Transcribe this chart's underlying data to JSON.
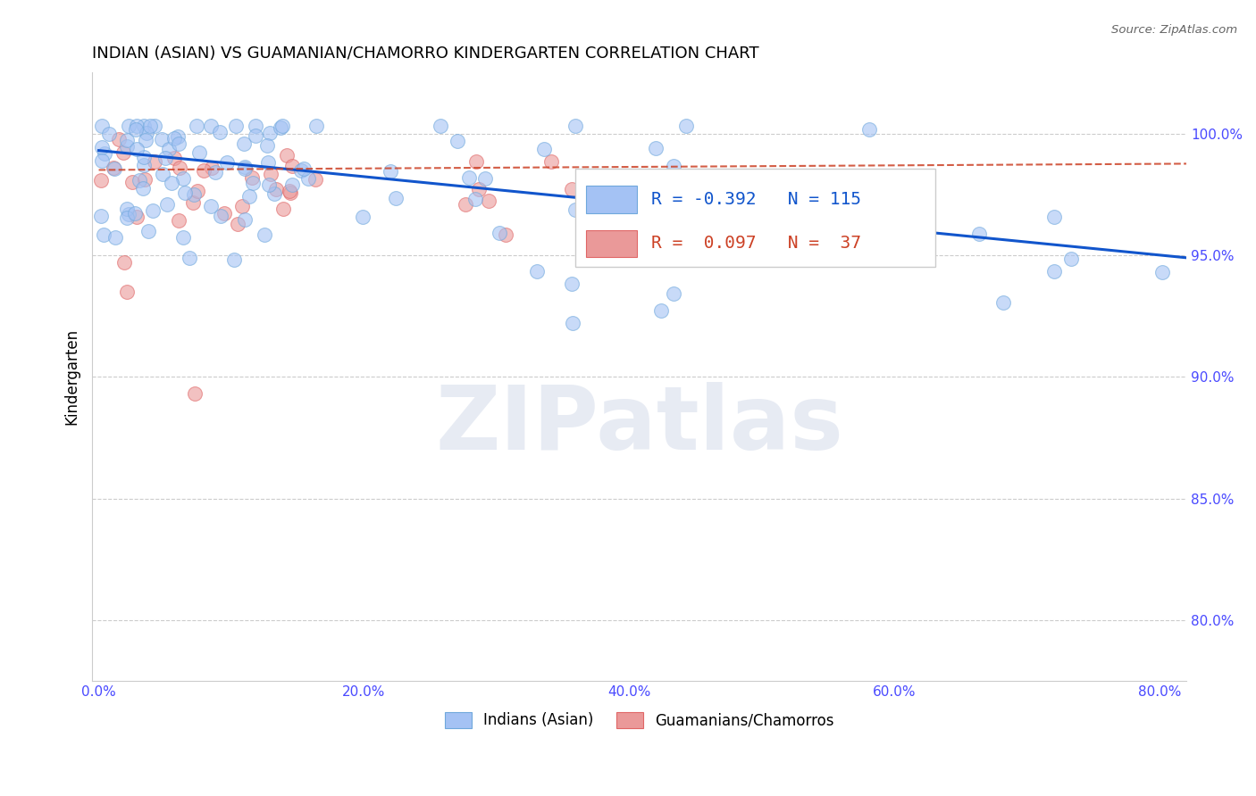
{
  "title": "INDIAN (ASIAN) VS GUAMANIAN/CHAMORRO KINDERGARTEN CORRELATION CHART",
  "source": "Source: ZipAtlas.com",
  "xlabel_ticks": [
    "0.0%",
    "20.0%",
    "40.0%",
    "60.0%",
    "80.0%"
  ],
  "xlabel_vals": [
    0.0,
    0.2,
    0.4,
    0.6,
    0.8
  ],
  "ylabel": "Kindergarten",
  "ylabel_ticks": [
    "80.0%",
    "85.0%",
    "90.0%",
    "95.0%",
    "100.0%"
  ],
  "ylabel_vals": [
    0.8,
    0.85,
    0.9,
    0.95,
    1.0
  ],
  "xlim": [
    -0.005,
    0.82
  ],
  "ylim": [
    0.775,
    1.025
  ],
  "R_blue": -0.392,
  "N_blue": 115,
  "R_pink": 0.097,
  "N_pink": 37,
  "blue_color": "#a4c2f4",
  "pink_color": "#ea9999",
  "blue_edge": "#6fa8dc",
  "pink_edge": "#e06666",
  "trend_blue": "#1155cc",
  "trend_pink": "#cc4125",
  "watermark_color": "#d0d8e8",
  "watermark_text": "ZIPatlas",
  "legend_label_blue": "Indians (Asian)",
  "legend_label_pink": "Guamanians/Chamorros",
  "legend_R_color": "#1155cc",
  "legend_N_color": "#cc4125",
  "tick_color": "#4a4aff",
  "axis_label_color": "#000000"
}
